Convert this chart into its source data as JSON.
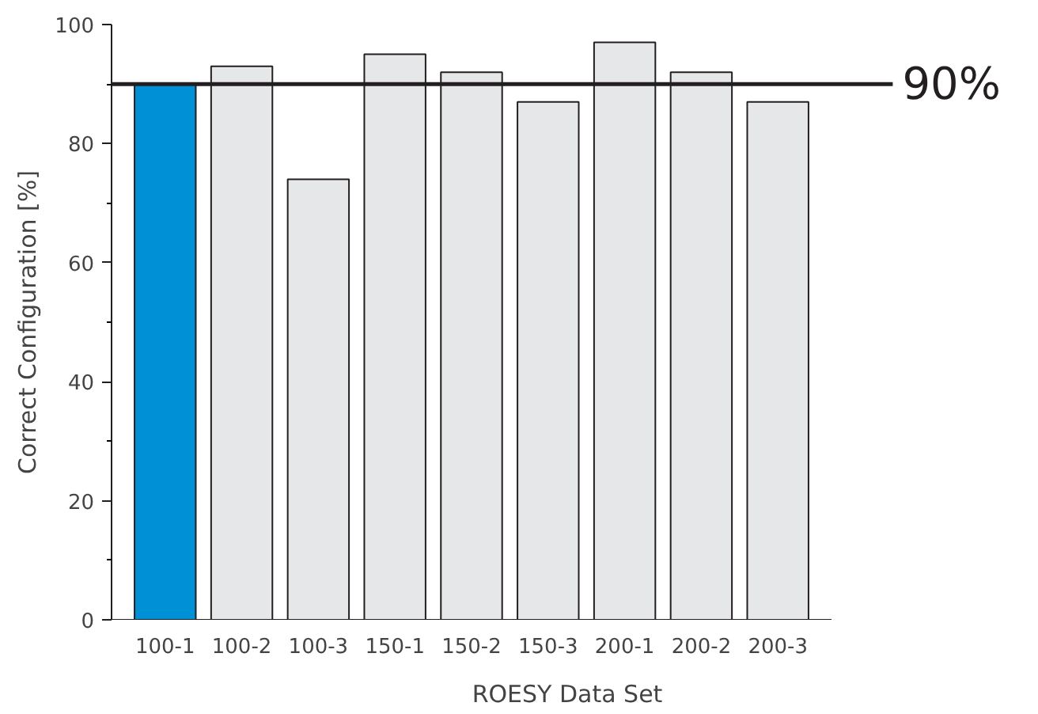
{
  "chart_data": {
    "type": "bar",
    "xlabel": "ROESY Data Set",
    "ylabel": "Correct Configuration [%]",
    "categories": [
      "100-1",
      "100-2",
      "100-3",
      "150-1",
      "150-2",
      "150-3",
      "200-1",
      "200-2",
      "200-3"
    ],
    "values": [
      90,
      93,
      74,
      95,
      92,
      87,
      97,
      92,
      87
    ],
    "colors": [
      "#0090d6",
      "#e6e7e8",
      "#e6e7e8",
      "#e6e7e8",
      "#e6e7e8",
      "#e6e7e8",
      "#e6e7e8",
      "#e6e7e8",
      "#e6e7e8"
    ],
    "ylim": [
      0,
      100
    ],
    "yticks": [
      0,
      20,
      40,
      60,
      80,
      100
    ],
    "grid": false,
    "ref_lines": [
      {
        "axis": "y",
        "value": 90,
        "label": "90%",
        "color": "#231f20"
      }
    ]
  }
}
